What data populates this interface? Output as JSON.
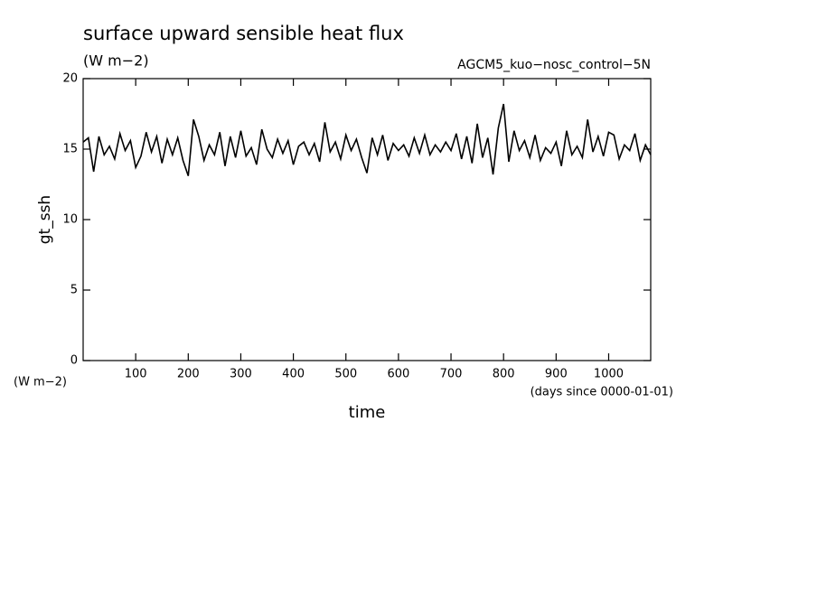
{
  "chart_data": {
    "type": "line",
    "title": "surface upward sensible heat flux",
    "subtitle": "(W m−2)",
    "annotation": "AGCM5_kuo−nosc_control−5N",
    "ylabel": "gt_ssh",
    "yunits": "(W m−2)",
    "xunits": "(days since 0000-01-01)",
    "xlabel": "time",
    "xlim": [
      0,
      1080
    ],
    "ylim": [
      0,
      20
    ],
    "xticks": [
      100,
      200,
      300,
      400,
      500,
      600,
      700,
      800,
      900,
      1000
    ],
    "yticks": [
      0,
      5,
      10,
      15,
      20
    ],
    "series": [
      {
        "color": "#000000",
        "x": [
          0,
          10,
          20,
          30,
          40,
          50,
          60,
          70,
          80,
          90,
          100,
          110,
          120,
          130,
          140,
          150,
          160,
          170,
          180,
          190,
          200,
          210,
          220,
          230,
          240,
          250,
          260,
          270,
          280,
          290,
          300,
          310,
          320,
          330,
          340,
          350,
          360,
          370,
          380,
          390,
          400,
          410,
          420,
          430,
          440,
          450,
          460,
          470,
          480,
          490,
          500,
          510,
          520,
          530,
          540,
          550,
          560,
          570,
          580,
          590,
          600,
          610,
          620,
          630,
          640,
          650,
          660,
          670,
          680,
          690,
          700,
          710,
          720,
          730,
          740,
          750,
          760,
          770,
          780,
          790,
          800,
          810,
          820,
          830,
          840,
          850,
          860,
          870,
          880,
          890,
          900,
          910,
          920,
          930,
          940,
          950,
          960,
          970,
          980,
          990,
          1000,
          1010,
          1020,
          1030,
          1040,
          1050,
          1060,
          1070,
          1080
        ],
        "values": [
          15.5,
          15.8,
          13.4,
          15.9,
          14.6,
          15.2,
          14.3,
          16.1,
          14.9,
          15.6,
          13.7,
          14.5,
          16.2,
          14.8,
          15.9,
          14.0,
          15.7,
          14.6,
          15.8,
          14.2,
          13.1,
          17.1,
          15.9,
          14.2,
          15.3,
          14.6,
          16.2,
          13.8,
          15.9,
          14.4,
          16.3,
          14.5,
          15.1,
          13.9,
          16.4,
          15.0,
          14.4,
          15.7,
          14.7,
          15.6,
          13.9,
          15.2,
          15.5,
          14.6,
          15.4,
          14.1,
          16.9,
          14.8,
          15.5,
          14.3,
          16.0,
          14.9,
          15.7,
          14.4,
          13.3,
          15.8,
          14.6,
          16.0,
          14.2,
          15.4,
          14.9,
          15.3,
          14.5,
          15.8,
          14.7,
          16.0,
          14.6,
          15.3,
          14.8,
          15.5,
          14.9,
          16.1,
          14.3,
          15.9,
          14.0,
          16.8,
          14.4,
          15.8,
          13.2,
          16.5,
          18.2,
          14.1,
          16.3,
          14.9,
          15.6,
          14.4,
          16.0,
          14.2,
          15.1,
          14.7,
          15.5,
          13.8,
          16.3,
          14.6,
          15.2,
          14.4,
          17.1,
          14.8,
          15.9,
          14.5,
          16.2,
          16.0,
          14.3,
          15.3,
          14.9,
          16.1,
          14.2,
          15.3,
          14.6
        ]
      }
    ]
  }
}
